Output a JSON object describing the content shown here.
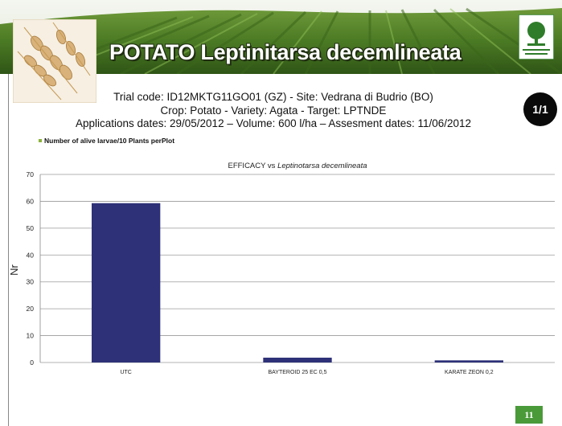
{
  "header": {
    "title": "POTATO Leptinitarsa decemlineata"
  },
  "info": {
    "line1": "Trial code: ID12MKTG11GO01 (GZ) - Site: Vedrana di Budrio (BO)",
    "line2": "Crop: Potato - Variety: Agata - Target: LPTNDE",
    "line3": "Applications dates: 29/05/2012 – Volume: 600 l/ha – Assesment dates: 11/06/2012"
  },
  "badge": "1/1",
  "page_number": "11",
  "colors": {
    "bar": "#2e3178",
    "legend_swatch": "#8bb33a",
    "badge_bg": "#0a0a0a",
    "page_number_bg": "#4a9a3a"
  },
  "chart_data": {
    "type": "bar",
    "title_prefix": "EFFICACY vs ",
    "title_italic": "Leptinotarsa decemlineata",
    "legend": "Number of alive larvae/10 Plants perPlot",
    "ylabel": "Nr",
    "xlabel": "",
    "ylim": [
      0,
      70
    ],
    "yticks": [
      0,
      10,
      20,
      30,
      40,
      50,
      60,
      70
    ],
    "grid": true,
    "categories": [
      "UTC",
      "BAYTEROID 25 EC 0,5",
      "KARATE ZEON 0,2"
    ],
    "values": [
      59.3,
      1.8,
      0.8
    ]
  }
}
